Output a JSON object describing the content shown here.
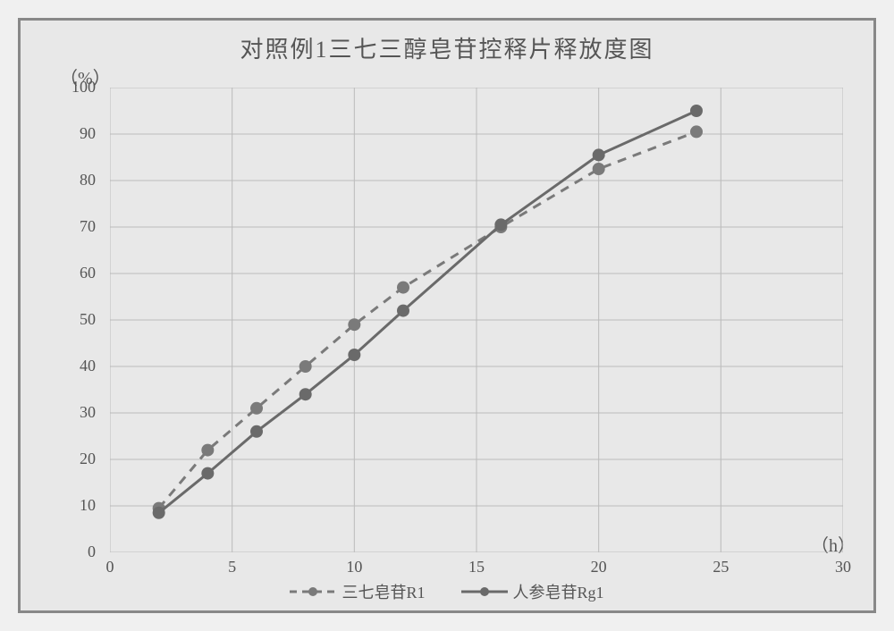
{
  "chart": {
    "type": "line",
    "title": "对照例1三七三醇皂苷控释片释放度图",
    "title_fontsize": 26,
    "y_unit": "（%）",
    "x_unit": "（h）",
    "background_color": "#e8e8e8",
    "outer_background": "#f0f0f0",
    "border_color": "#888",
    "grid_color": "#bbb",
    "text_color": "#555",
    "label_fontsize": 18,
    "xlim": [
      0,
      30
    ],
    "ylim": [
      0,
      100
    ],
    "xtick_step": 5,
    "ytick_step": 10,
    "xticks": [
      0,
      5,
      10,
      15,
      20,
      25,
      30
    ],
    "yticks": [
      0,
      10,
      20,
      30,
      40,
      50,
      60,
      70,
      80,
      90,
      100
    ],
    "series": [
      {
        "name": "三七皂苷R1",
        "line_style": "dashed",
        "dash_pattern": "10,8",
        "line_width": 3,
        "line_color": "#7a7a7a",
        "marker_style": "circle",
        "marker_size": 7,
        "marker_color": "#7a7a7a",
        "x": [
          2,
          4,
          6,
          8,
          10,
          12,
          16,
          20,
          24
        ],
        "y": [
          9.5,
          22,
          31,
          40,
          49,
          57,
          70,
          82.5,
          90.5
        ]
      },
      {
        "name": "人参皂苷Rg1",
        "line_style": "solid",
        "line_width": 3,
        "line_color": "#6a6a6a",
        "marker_style": "circle",
        "marker_size": 7,
        "marker_color": "#6a6a6a",
        "x": [
          2,
          4,
          6,
          8,
          10,
          12,
          16,
          20,
          24
        ],
        "y": [
          8.5,
          17,
          26,
          34,
          42.5,
          52,
          70.5,
          85.5,
          95
        ]
      }
    ],
    "legend_position": "bottom-center"
  }
}
